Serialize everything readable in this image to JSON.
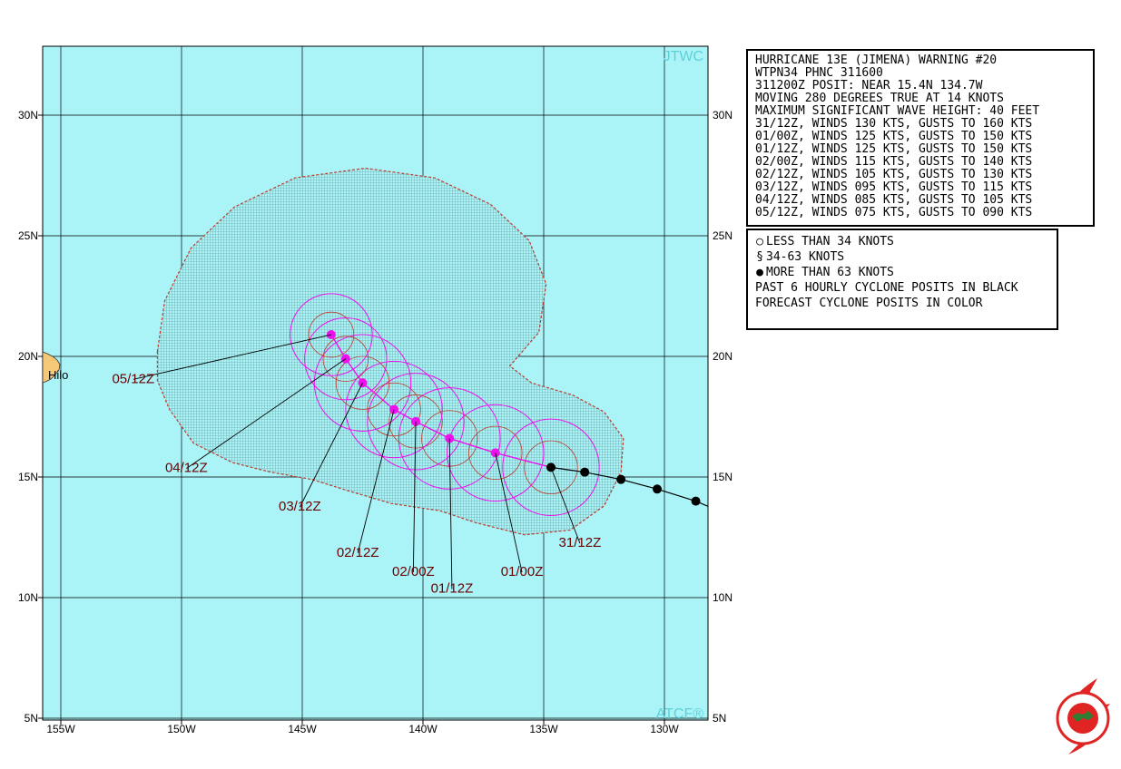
{
  "map": {
    "watermark_top": "JTWC",
    "watermark_bottom": "ATCF®",
    "place_label": "Hilo",
    "lat_labels": [
      "30N",
      "25N",
      "20N",
      "15N",
      "10N",
      "5N"
    ],
    "lon_labels": [
      "155W",
      "150W",
      "145W",
      "140W",
      "135W",
      "130W"
    ],
    "colors": {
      "ocean": "#aaf4f8",
      "land": "#f5c878",
      "danger_fill": "#7ab0b4",
      "danger_edge": "#c0392b",
      "forecast_track": "#ee11ee",
      "past_track": "#000000",
      "labels": "#6b0000"
    }
  },
  "warning": {
    "lines": [
      "HURRICANE 13E (JIMENA) WARNING #20",
      "WTPN34 PHNC 311600",
      "311200Z POSIT: NEAR 15.4N 134.7W",
      "MOVING 280 DEGREES TRUE AT 14 KNOTS",
      "MAXIMUM SIGNIFICANT WAVE HEIGHT: 40 FEET",
      "31/12Z, WINDS 130 KTS, GUSTS TO 160 KTS",
      "01/00Z, WINDS 125 KTS, GUSTS TO 150 KTS",
      "01/12Z, WINDS 125 KTS, GUSTS TO 150 KTS",
      "02/00Z, WINDS 115 KTS, GUSTS TO 140 KTS",
      "02/12Z, WINDS 105 KTS, GUSTS TO 130 KTS",
      "03/12Z, WINDS 095 KTS, GUSTS TO 115 KTS",
      "04/12Z, WINDS 085 KTS, GUSTS TO 105 KTS",
      "05/12Z, WINDS 075 KTS, GUSTS TO 090 KTS"
    ]
  },
  "legend": {
    "less_34": "LESS THAN 34 KNOTS",
    "b34_63": "34-63 KNOTS",
    "more_63": "MORE THAN 63 KNOTS",
    "past_note": "PAST 6 HOURLY CYCLONE POSITS IN BLACK",
    "forecast_note": "FORECAST CYCLONE POSITS IN COLOR"
  },
  "past_positions": [
    {
      "lat": 14.0,
      "lon": -128.7
    },
    {
      "lat": 14.5,
      "lon": -130.3
    },
    {
      "lat": 14.9,
      "lon": -131.8
    },
    {
      "lat": 15.2,
      "lon": -133.3
    },
    {
      "lat": 15.4,
      "lon": -134.7
    }
  ],
  "forecast_points": [
    {
      "label": "31/12Z",
      "lat": 15.4,
      "lon": -134.7,
      "label_lat": 12.1,
      "label_lon": -133.5,
      "r34": 2.0
    },
    {
      "label": "01/00Z",
      "lat": 16.0,
      "lon": -137.0,
      "label_lat": 10.9,
      "label_lon": -135.9,
      "r34": 2.0
    },
    {
      "label": "01/12Z",
      "lat": 16.6,
      "lon": -138.9,
      "label_lat": 10.2,
      "label_lon": -138.8,
      "r34": 2.1
    },
    {
      "label": "02/00Z",
      "lat": 17.3,
      "lon": -140.3,
      "label_lat": 10.9,
      "label_lon": -140.4,
      "r34": 2.0
    },
    {
      "label": "02/12Z",
      "lat": 17.8,
      "lon": -141.2,
      "label_lat": 11.7,
      "label_lon": -142.7,
      "r34": 2.0
    },
    {
      "label": "03/12Z",
      "lat": 18.9,
      "lon": -142.5,
      "label_lat": 13.6,
      "label_lon": -145.1,
      "r34": 2.0
    },
    {
      "label": "04/12Z",
      "lat": 19.9,
      "lon": -143.2,
      "label_lat": 15.2,
      "label_lon": -149.8,
      "r34": 1.7
    },
    {
      "label": "05/12Z",
      "lat": 20.9,
      "lon": -143.8,
      "label_lat": 18.9,
      "label_lon": -152.0,
      "r34": 1.7
    }
  ]
}
